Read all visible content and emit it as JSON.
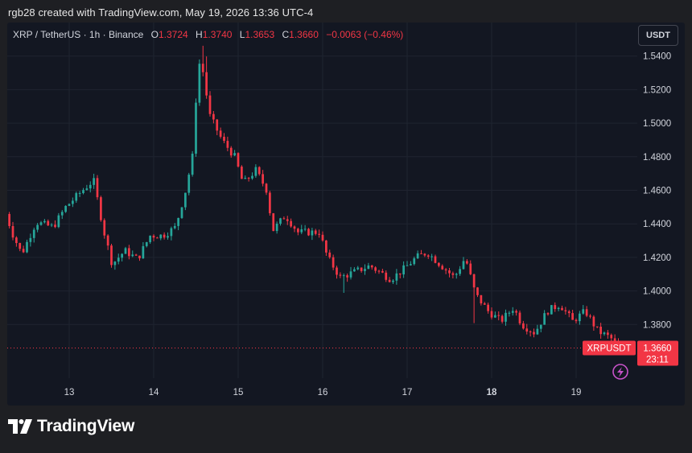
{
  "header": {
    "caption": "rgb28 created with TradingView.com, May 19, 2026 13:36 UTC-4"
  },
  "legend": {
    "symbol": "XRP / TetherUS · 1h · Binance",
    "open_label": "O",
    "open": "1.3724",
    "high_label": "H",
    "high": "1.3740",
    "low_label": "L",
    "low": "1.3653",
    "close_label": "C",
    "close": "1.3660",
    "change": "−0.0063 (−0.46%)"
  },
  "toolbar": {
    "currency": "USDT"
  },
  "price_tag": {
    "symbol": "XRPUSDT",
    "price": "1.3660",
    "countdown": "23:11"
  },
  "footer": {
    "brand": "TradingView"
  },
  "colors": {
    "up": "#26a69a",
    "down": "#f23645",
    "background": "#131722",
    "grid": "#1f2430"
  },
  "icons": {
    "flash": "flash-icon",
    "logo": "tradingview-logo-icon"
  },
  "chart_data": {
    "type": "candlestick",
    "symbol": "XRP / TetherUS",
    "interval": "1h",
    "exchange": "Binance",
    "y_ticks": [
      "1.5400",
      "1.5200",
      "1.5000",
      "1.4800",
      "1.4600",
      "1.4400",
      "1.4200",
      "1.4000",
      "1.3800"
    ],
    "x_ticks": [
      "13",
      "14",
      "15",
      "16",
      "17",
      "18",
      "19"
    ],
    "ylim": [
      1.348,
      1.56
    ],
    "last_price": 1.366,
    "grid": true,
    "anchors": [
      [
        12.25,
        1.452
      ],
      [
        12.38,
        1.433
      ],
      [
        12.48,
        1.422
      ],
      [
        12.65,
        1.441
      ],
      [
        12.85,
        1.438
      ],
      [
        13.0,
        1.45
      ],
      [
        13.2,
        1.46
      ],
      [
        13.33,
        1.466
      ],
      [
        13.45,
        1.436
      ],
      [
        13.55,
        1.416
      ],
      [
        13.7,
        1.424
      ],
      [
        13.85,
        1.419
      ],
      [
        14.0,
        1.433
      ],
      [
        14.15,
        1.433
      ],
      [
        14.3,
        1.438
      ],
      [
        14.42,
        1.46
      ],
      [
        14.5,
        1.48
      ],
      [
        14.57,
        1.537
      ],
      [
        14.63,
        1.53
      ],
      [
        14.7,
        1.505
      ],
      [
        14.85,
        1.49
      ],
      [
        15.0,
        1.48
      ],
      [
        15.1,
        1.464
      ],
      [
        15.25,
        1.472
      ],
      [
        15.38,
        1.46
      ],
      [
        15.45,
        1.436
      ],
      [
        15.6,
        1.445
      ],
      [
        15.75,
        1.435
      ],
      [
        16.0,
        1.435
      ],
      [
        16.1,
        1.42
      ],
      [
        16.25,
        1.408
      ],
      [
        16.4,
        1.411
      ],
      [
        16.6,
        1.415
      ],
      [
        16.85,
        1.407
      ],
      [
        17.0,
        1.413
      ],
      [
        17.15,
        1.42
      ],
      [
        17.28,
        1.423
      ],
      [
        17.45,
        1.415
      ],
      [
        17.6,
        1.408
      ],
      [
        17.73,
        1.42
      ],
      [
        17.85,
        1.398
      ],
      [
        18.0,
        1.388
      ],
      [
        18.15,
        1.382
      ],
      [
        18.3,
        1.39
      ],
      [
        18.4,
        1.38
      ],
      [
        18.55,
        1.375
      ],
      [
        18.7,
        1.388
      ],
      [
        18.85,
        1.392
      ],
      [
        19.0,
        1.382
      ],
      [
        19.15,
        1.388
      ],
      [
        19.3,
        1.376
      ],
      [
        19.45,
        1.372
      ],
      [
        19.55,
        1.366
      ]
    ]
  }
}
